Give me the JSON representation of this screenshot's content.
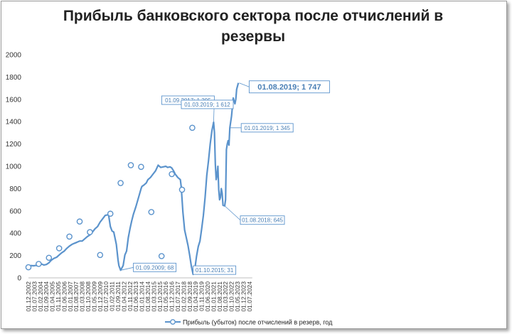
{
  "chart_data": {
    "type": "line",
    "title_line1": "Прибыль банковского сектора после отчислений в",
    "title_line2": "резервы",
    "ylim": [
      0,
      2000
    ],
    "yticks": [
      0,
      200,
      400,
      600,
      800,
      1000,
      1200,
      1400,
      1600,
      1800,
      2000
    ],
    "grid": false,
    "x_tick_labels": [
      "01.12.2002",
      "01.07.2003",
      "01.02.2004",
      "01.09.2004",
      "01.04.2005",
      "01.11.2005",
      "01.06.2006",
      "01.01.2007",
      "01.08.2007",
      "01.03.2008",
      "01.10.2008",
      "01.05.2009",
      "01.12.2009",
      "01.07.2010",
      "01.02.2011",
      "01.09.2011",
      "01.04.2012",
      "01.11.2012",
      "01.06.2013",
      "01.01.2014",
      "01.08.2014",
      "01.03.2015",
      "01.10.2015",
      "01.05.2016",
      "01.12.2016",
      "01.07.2017",
      "01.02.2018",
      "01.09.2018",
      "01.04.2019",
      "01.11.2019",
      "01.06.2020",
      "01.01.2021",
      "01.08.2021",
      "01.03.2022",
      "01.10.2022",
      "01.05.2023",
      "01.12.2023",
      "01.07.2024"
    ],
    "series": [
      {
        "name": "Прибыль (убыток) после отчислений в резерв, год",
        "color": "#5b93cc",
        "points": [
          [
            0,
            95
          ],
          [
            3,
            110
          ],
          [
            6,
            108
          ],
          [
            9,
            112
          ],
          [
            12,
            105
          ],
          [
            15,
            125
          ],
          [
            18,
            115
          ],
          [
            21,
            120
          ],
          [
            24,
            135
          ],
          [
            27,
            160
          ],
          [
            30,
            175
          ],
          [
            33,
            185
          ],
          [
            36,
            205
          ],
          [
            39,
            225
          ],
          [
            42,
            240
          ],
          [
            45,
            265
          ],
          [
            48,
            285
          ],
          [
            51,
            300
          ],
          [
            54,
            310
          ],
          [
            57,
            320
          ],
          [
            60,
            330
          ],
          [
            63,
            330
          ],
          [
            66,
            350
          ],
          [
            69,
            370
          ],
          [
            72,
            385
          ],
          [
            75,
            410
          ],
          [
            78,
            440
          ],
          [
            81,
            460
          ],
          [
            84,
            500
          ],
          [
            87,
            530
          ],
          [
            90,
            560
          ],
          [
            93,
            565
          ],
          [
            94,
            560
          ],
          [
            96,
            460
          ],
          [
            98,
            420
          ],
          [
            100,
            410
          ],
          [
            103,
            300
          ],
          [
            105,
            160
          ],
          [
            106,
            110
          ],
          [
            108,
            68
          ],
          [
            111,
            110
          ],
          [
            113,
            205
          ],
          [
            115,
            240
          ],
          [
            117,
            360
          ],
          [
            119,
            440
          ],
          [
            121,
            510
          ],
          [
            123,
            570
          ],
          [
            126,
            640
          ],
          [
            129,
            720
          ],
          [
            132,
            800
          ],
          [
            133,
            820
          ],
          [
            135,
            830
          ],
          [
            138,
            850
          ],
          [
            140,
            880
          ],
          [
            143,
            900
          ],
          [
            146,
            930
          ],
          [
            149,
            960
          ],
          [
            152,
            1010
          ],
          [
            155,
            990
          ],
          [
            158,
            995
          ],
          [
            161,
            1000
          ],
          [
            163,
            990
          ],
          [
            166,
            995
          ],
          [
            168,
            985
          ],
          [
            170,
            960
          ],
          [
            172,
            930
          ],
          [
            175,
            900
          ],
          [
            178,
            880
          ],
          [
            179,
            820
          ],
          [
            181,
            590
          ],
          [
            183,
            430
          ],
          [
            185,
            360
          ],
          [
            187,
            290
          ],
          [
            189,
            200
          ],
          [
            191,
            100
          ],
          [
            193,
            31
          ],
          [
            195,
            80
          ],
          [
            197,
            195
          ],
          [
            199,
            280
          ],
          [
            201,
            330
          ],
          [
            203,
            440
          ],
          [
            205,
            560
          ],
          [
            207,
            720
          ],
          [
            209,
            920
          ],
          [
            211,
            1050
          ],
          [
            213,
            1200
          ],
          [
            215,
            1320
          ],
          [
            217,
            1395
          ],
          [
            218,
            1300
          ],
          [
            219,
            1020
          ],
          [
            220,
            880
          ],
          [
            221,
            920
          ],
          [
            222,
            1000
          ],
          [
            223,
            790
          ],
          [
            224,
            700
          ],
          [
            225,
            720
          ],
          [
            226,
            800
          ],
          [
            227,
            760
          ],
          [
            228,
            650
          ],
          [
            230,
            645
          ],
          [
            231,
            700
          ],
          [
            232,
            1150
          ],
          [
            233,
            1200
          ],
          [
            234,
            1230
          ],
          [
            235,
            1190
          ],
          [
            236,
            1345
          ],
          [
            238,
            1450
          ],
          [
            240,
            1612
          ],
          [
            242,
            1560
          ],
          [
            243,
            1600
          ],
          [
            244,
            1690
          ],
          [
            246,
            1747
          ]
        ]
      }
    ],
    "annotations": [
      {
        "month": 0,
        "value": 95,
        "marker": true,
        "text": ""
      },
      {
        "month": 12,
        "value": 125,
        "marker": true,
        "text": ""
      },
      {
        "month": 24,
        "value": 180,
        "marker": true,
        "text": ""
      },
      {
        "month": 36,
        "value": 265,
        "marker": true,
        "text": ""
      },
      {
        "month": 48,
        "value": 370,
        "marker": true,
        "text": ""
      },
      {
        "month": 60,
        "value": 505,
        "marker": true,
        "text": ""
      },
      {
        "month": 72,
        "value": 410,
        "marker": true,
        "text": ""
      },
      {
        "month": 84,
        "value": 205,
        "marker": true,
        "text": ""
      },
      {
        "month": 96,
        "value": 575,
        "marker": true,
        "text": ""
      },
      {
        "month": 108,
        "value": 850,
        "marker": true,
        "text": ""
      },
      {
        "month": 120,
        "value": 1010,
        "marker": true,
        "text": ""
      },
      {
        "month": 132,
        "value": 995,
        "marker": true,
        "text": ""
      },
      {
        "month": 144,
        "value": 590,
        "marker": true,
        "text": ""
      },
      {
        "month": 156,
        "value": 195,
        "marker": true,
        "text": ""
      },
      {
        "month": 168,
        "value": 930,
        "marker": true,
        "text": ""
      },
      {
        "month": 180,
        "value": 790,
        "marker": true,
        "text": ""
      },
      {
        "month": 192,
        "value": 1345,
        "marker": true,
        "text": ""
      },
      {
        "month": 108,
        "value": 68,
        "marker": false,
        "text": "01.09.2009; 68"
      },
      {
        "month": 193,
        "value": 31,
        "marker": false,
        "text": "01.10.2015; 31"
      },
      {
        "month": 217,
        "value": 1395,
        "marker": false,
        "text": "01.09.2017; 1 395"
      },
      {
        "month": 230,
        "value": 645,
        "marker": false,
        "text": "01.08.2018; 645"
      },
      {
        "month": 236,
        "value": 1345,
        "marker": false,
        "text": "01.01.2019; 1 345"
      },
      {
        "month": 240,
        "value": 1612,
        "marker": false,
        "text": "01.03.2019; 1 612"
      },
      {
        "month": 247,
        "value": 1747,
        "marker": false,
        "text": "01.08.2019; 1 747"
      }
    ],
    "legend": "bottom"
  }
}
